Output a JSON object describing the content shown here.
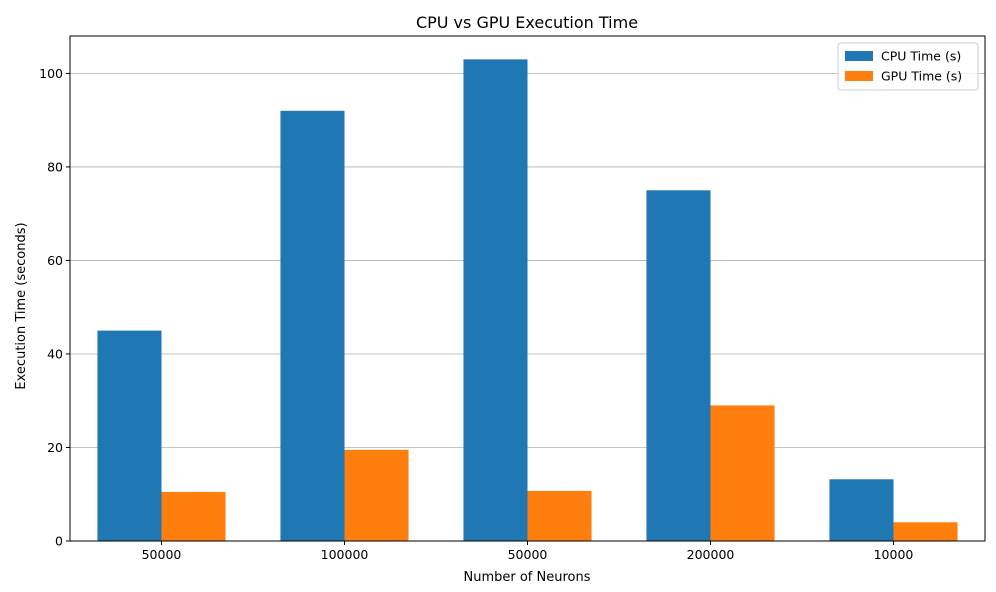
{
  "chart_data": {
    "type": "bar",
    "title": "CPU vs GPU Execution Time",
    "xlabel": "Number of Neurons",
    "ylabel": "Execution Time (seconds)",
    "categories": [
      "50000",
      "100000",
      "50000",
      "200000",
      "10000"
    ],
    "series": [
      {
        "name": "CPU Time (s)",
        "color": "#1f77b4",
        "values": [
          45.0,
          92.0,
          103.0,
          75.0,
          13.2
        ]
      },
      {
        "name": "GPU Time (s)",
        "color": "#ff7f0e",
        "values": [
          10.5,
          19.5,
          10.7,
          29.0,
          4.0
        ]
      }
    ],
    "ylim": [
      0,
      108
    ],
    "yticks": [
      0,
      20,
      40,
      60,
      80,
      100
    ],
    "grid": "y",
    "legend": "top-right"
  }
}
